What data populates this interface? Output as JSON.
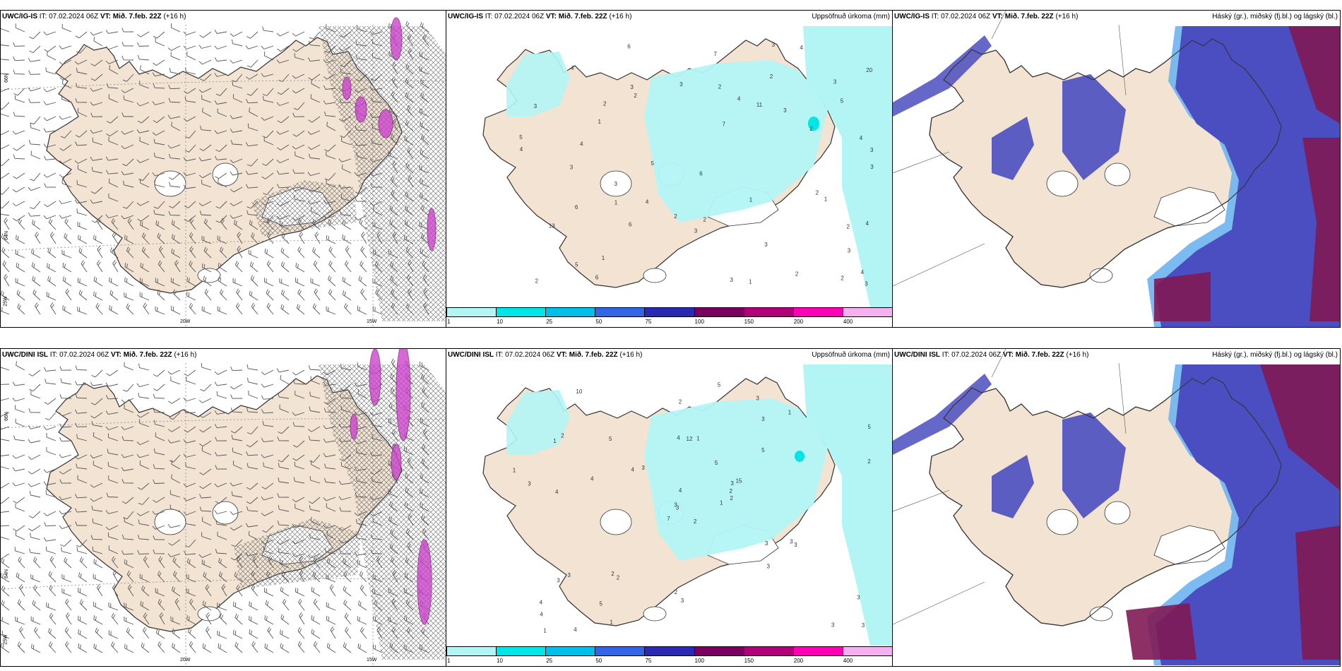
{
  "rows": [
    {
      "model": "UWC/IG-IS",
      "panels": [
        {
          "kind": "wind",
          "valid": "Mið. 7.feb. 22Z",
          "lead": "(+16 h)",
          "right_title": ""
        },
        {
          "kind": "precip",
          "valid": "Mið. 7.feb. 22Z",
          "lead": "(+16 h)",
          "right_title": "Uppsöfnuð úrkoma (mm)"
        },
        {
          "kind": "cloud",
          "valid": "Mið. 7.feb. 22Z",
          "lead": "(+16 h)",
          "right_title": "Háský (gr.), miðský (fj.bl.) og lágský (bl.)"
        }
      ]
    },
    {
      "model": "UWC/DINI ISL",
      "panels": [
        {
          "kind": "wind",
          "valid": "Mið. 7.feb. 22Z",
          "lead": "(+16 h)",
          "right_title": ""
        },
        {
          "kind": "precip",
          "valid": "Mið. 7.feb. 22Z",
          "lead": "(+16 h)",
          "right_title": "Uppsöfnuð úrkoma (mm)"
        },
        {
          "kind": "cloud",
          "valid": "Mið. 7.feb. 22Z",
          "lead": "(+16 h)",
          "right_title": "Háský (gr.), miðský (fj.bl.) og lágský (bl.)"
        }
      ]
    }
  ],
  "init_label": "IT:",
  "init_time": "07.02.2024 06Z",
  "valid_label": "VT:",
  "grid_labels": {
    "lat_66": "66N",
    "lat_64": "64N",
    "lon_25": "25W",
    "lon_20": "20W",
    "lon_15": "15W"
  },
  "precip_colorbar": {
    "ticks": [
      "1",
      "10",
      "25",
      "50",
      "75",
      "100",
      "150",
      "200",
      "400"
    ],
    "colors": [
      "#b3f5f5",
      "#00e5e5",
      "#00bfe8",
      "#3366e6",
      "#2a2ab0",
      "#7a0060",
      "#b0007a",
      "#ff00b4",
      "#f5b0f0"
    ]
  },
  "colors": {
    "land": "#f2e3d2",
    "coast": "#333333",
    "precip_light": "#b3f5f5",
    "cloud_high": "#7f1a55",
    "cloud_mid": "#4a4ec0",
    "cloud_low": "#6eb4f0"
  },
  "precip_values_top": [
    "2",
    "4",
    "11",
    "3",
    "5",
    "4",
    "4",
    "3",
    "2",
    "3",
    "1",
    "1",
    "2",
    "6",
    "13",
    "6",
    "3",
    "5",
    "6",
    "3",
    "4",
    "2",
    "5",
    "6",
    "7",
    "4",
    "2",
    "3",
    "3",
    "20",
    "6",
    "3",
    "3",
    "7",
    "4",
    "4",
    "3",
    "1",
    "5",
    "2",
    "1",
    "3",
    "2",
    "2",
    "3",
    "4",
    "4",
    "3",
    "3",
    "1",
    "2",
    "2",
    "2",
    "2",
    "1",
    "3"
  ],
  "precip_values_bottom": [
    "2",
    "1",
    "3",
    "4",
    "3",
    "2",
    "3",
    "1",
    "3",
    "1",
    "10",
    "3",
    "4",
    "5",
    "7",
    "5",
    "4",
    "4",
    "5",
    "3",
    "3",
    "4",
    "5",
    "12",
    "15",
    "3",
    "2",
    "2",
    "3",
    "3",
    "2",
    "3",
    "2",
    "4",
    "5",
    "1",
    "2",
    "3",
    "3",
    "3",
    "5",
    "4",
    "4",
    "3",
    "1",
    "1",
    "2",
    "1",
    "3",
    "2",
    "3"
  ]
}
